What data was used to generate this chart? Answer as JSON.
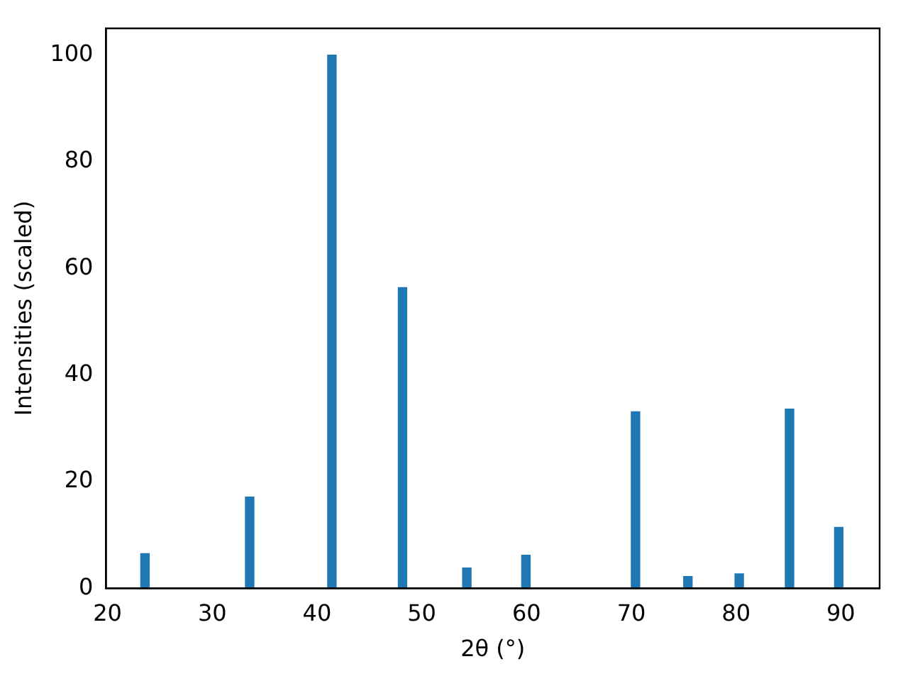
{
  "chart_data": {
    "type": "bar",
    "xlabel": "2θ (°)",
    "ylabel": "Intensities (scaled)",
    "x": [
      23.58,
      33.57,
      41.42,
      48.16,
      54.3,
      59.94,
      70.4,
      75.4,
      80.3,
      85.1,
      89.8
    ],
    "values": [
      6.5,
      17.1,
      100,
      56.4,
      3.8,
      6.2,
      33.1,
      2.2,
      2.7,
      33.6,
      11.4
    ],
    "color": "#1f77b4",
    "xlim": [
      19.86,
      93.7
    ],
    "xticks": [
      20,
      30,
      40,
      50,
      60,
      70,
      80,
      90
    ],
    "ylim": [
      0,
      105
    ],
    "yticks": [
      0,
      20,
      40,
      60,
      80,
      100
    ],
    "grid": false,
    "legend": false
  }
}
